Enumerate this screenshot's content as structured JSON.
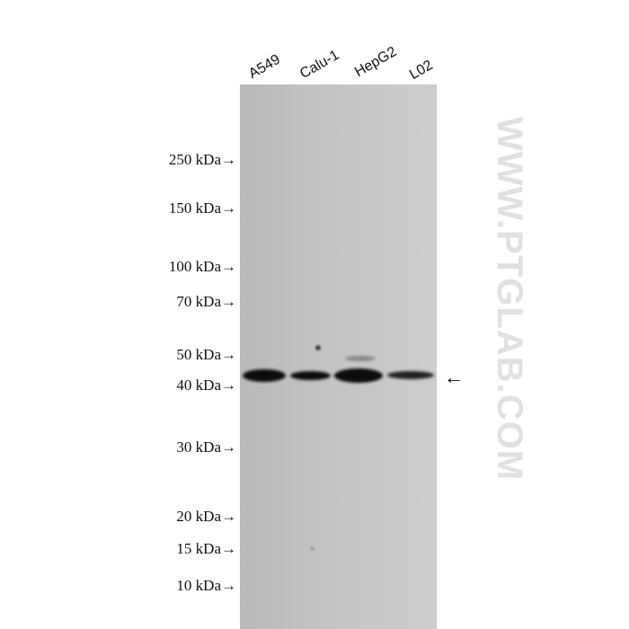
{
  "lanes": [
    "A549",
    "Calu-1",
    "HepG2",
    "L02"
  ],
  "markers": [
    {
      "label": "250 kDa→"
    },
    {
      "label": "150 kDa→"
    },
    {
      "label": "100 kDa→"
    },
    {
      "label": "70 kDa→"
    },
    {
      "label": "50 kDa→"
    },
    {
      "label": "40 kDa→"
    },
    {
      "label": "30 kDa→"
    },
    {
      "label": "20 kDa→"
    },
    {
      "label": "15 kDa→"
    },
    {
      "label": "10 kDa→"
    }
  ],
  "watermark": "WWW.PTGLAB.COM",
  "target_arrow": "←"
}
